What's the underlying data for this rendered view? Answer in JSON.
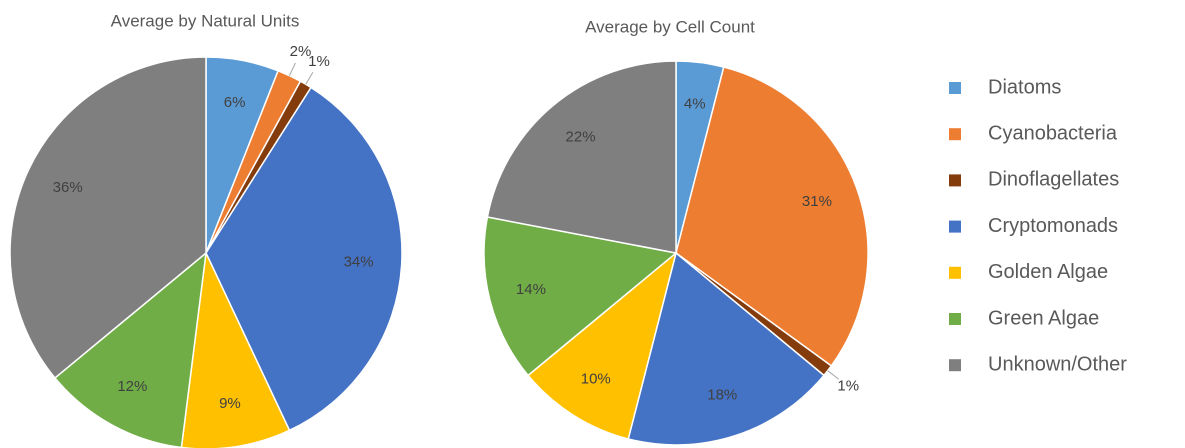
{
  "legend": {
    "categories": [
      "Diatoms",
      "Cyanobacteria",
      "Dinoflagellates",
      "Cryptomonads",
      "Golden Algae",
      "Green Algae",
      "Unknown/Other"
    ],
    "colors": [
      "#5b9bd5",
      "#ed7d31",
      "#843c0c",
      "#4472c4",
      "#ffc000",
      "#70ad47",
      "#7f7f7f"
    ]
  },
  "chart_data": [
    {
      "type": "pie",
      "title": "Average by Natural Units",
      "values": [
        6,
        2,
        1,
        34,
        9,
        12,
        36
      ],
      "value_labels": [
        "6%",
        "2%",
        "1%",
        "34%",
        "9%",
        "12%",
        "36%"
      ]
    },
    {
      "type": "pie",
      "title": "Average by Cell Count",
      "values": [
        4,
        31,
        1,
        18,
        10,
        14,
        22
      ],
      "value_labels": [
        "4%",
        "31%",
        "1%",
        "18%",
        "10%",
        "14%",
        "22%"
      ]
    }
  ]
}
